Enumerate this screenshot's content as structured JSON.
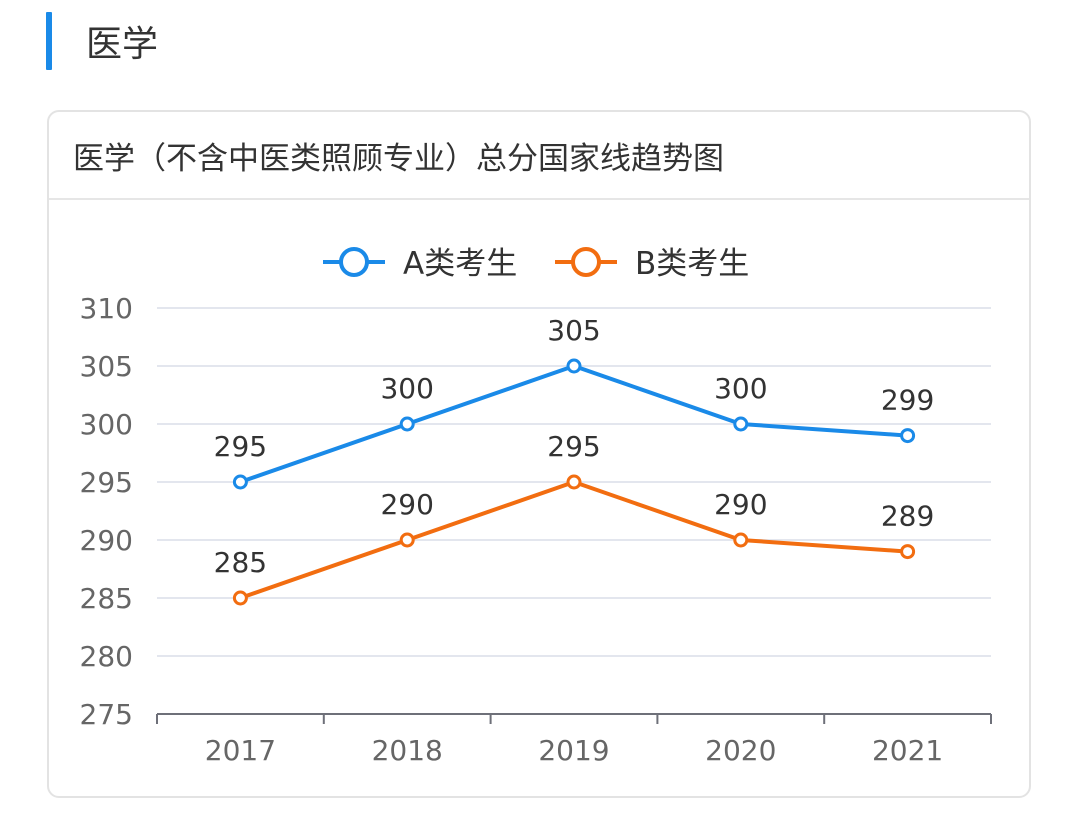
{
  "section": {
    "title": "医学"
  },
  "chart_data": {
    "type": "line",
    "title": "医学（不含中医类照顾专业）总分国家线趋势图",
    "categories": [
      "2017",
      "2018",
      "2019",
      "2020",
      "2021"
    ],
    "series": [
      {
        "name": "A类考生",
        "color": "#1a8ae8",
        "values": [
          295,
          300,
          305,
          300,
          299
        ]
      },
      {
        "name": "B类考生",
        "color": "#f26d10",
        "values": [
          285,
          290,
          295,
          290,
          289
        ]
      }
    ],
    "ylim": [
      275,
      310
    ],
    "yticks": [
      275,
      280,
      285,
      290,
      295,
      300,
      305,
      310
    ],
    "xlabel": "",
    "ylabel": "",
    "legend": "top-center",
    "grid": true
  }
}
